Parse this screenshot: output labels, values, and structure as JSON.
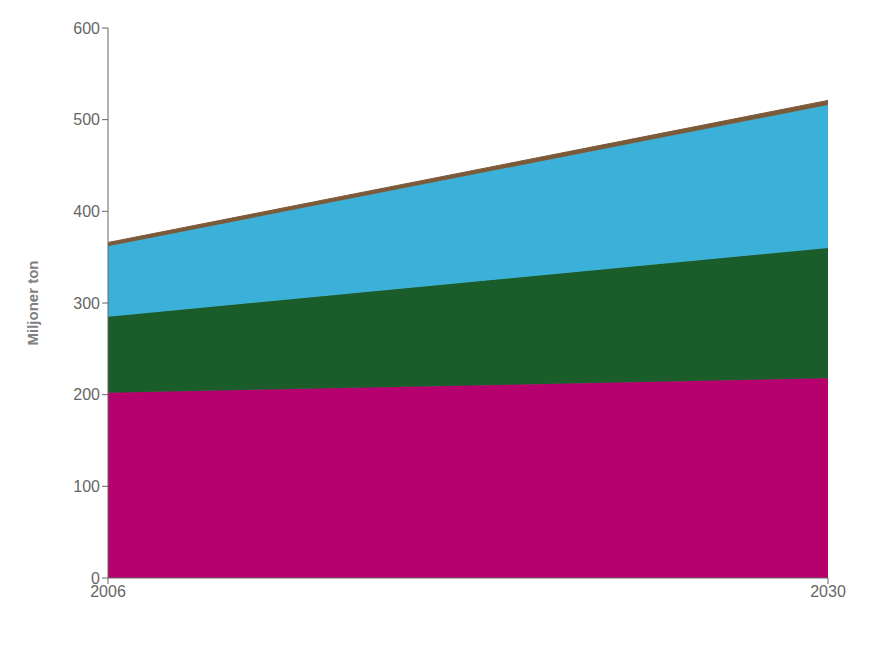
{
  "chart_data": {
    "type": "area",
    "stacked": true,
    "x": [
      2006,
      2030
    ],
    "series": [
      {
        "color": "#B5006E",
        "values": [
          202,
          218
        ]
      },
      {
        "color": "#1A5C2A",
        "values": [
          83,
          142
        ]
      },
      {
        "color": "#3BB0D8",
        "values": [
          77,
          156
        ]
      },
      {
        "color": "#7B5A3A",
        "values": [
          4,
          5
        ]
      }
    ],
    "ylabel": "Miljoner ton",
    "xlim": [
      2006,
      2030
    ],
    "xticks": [
      2006,
      2030
    ],
    "ylim": [
      0,
      600
    ],
    "yticks": [
      0,
      100,
      200,
      300,
      400,
      500,
      600
    ],
    "grid": false
  }
}
